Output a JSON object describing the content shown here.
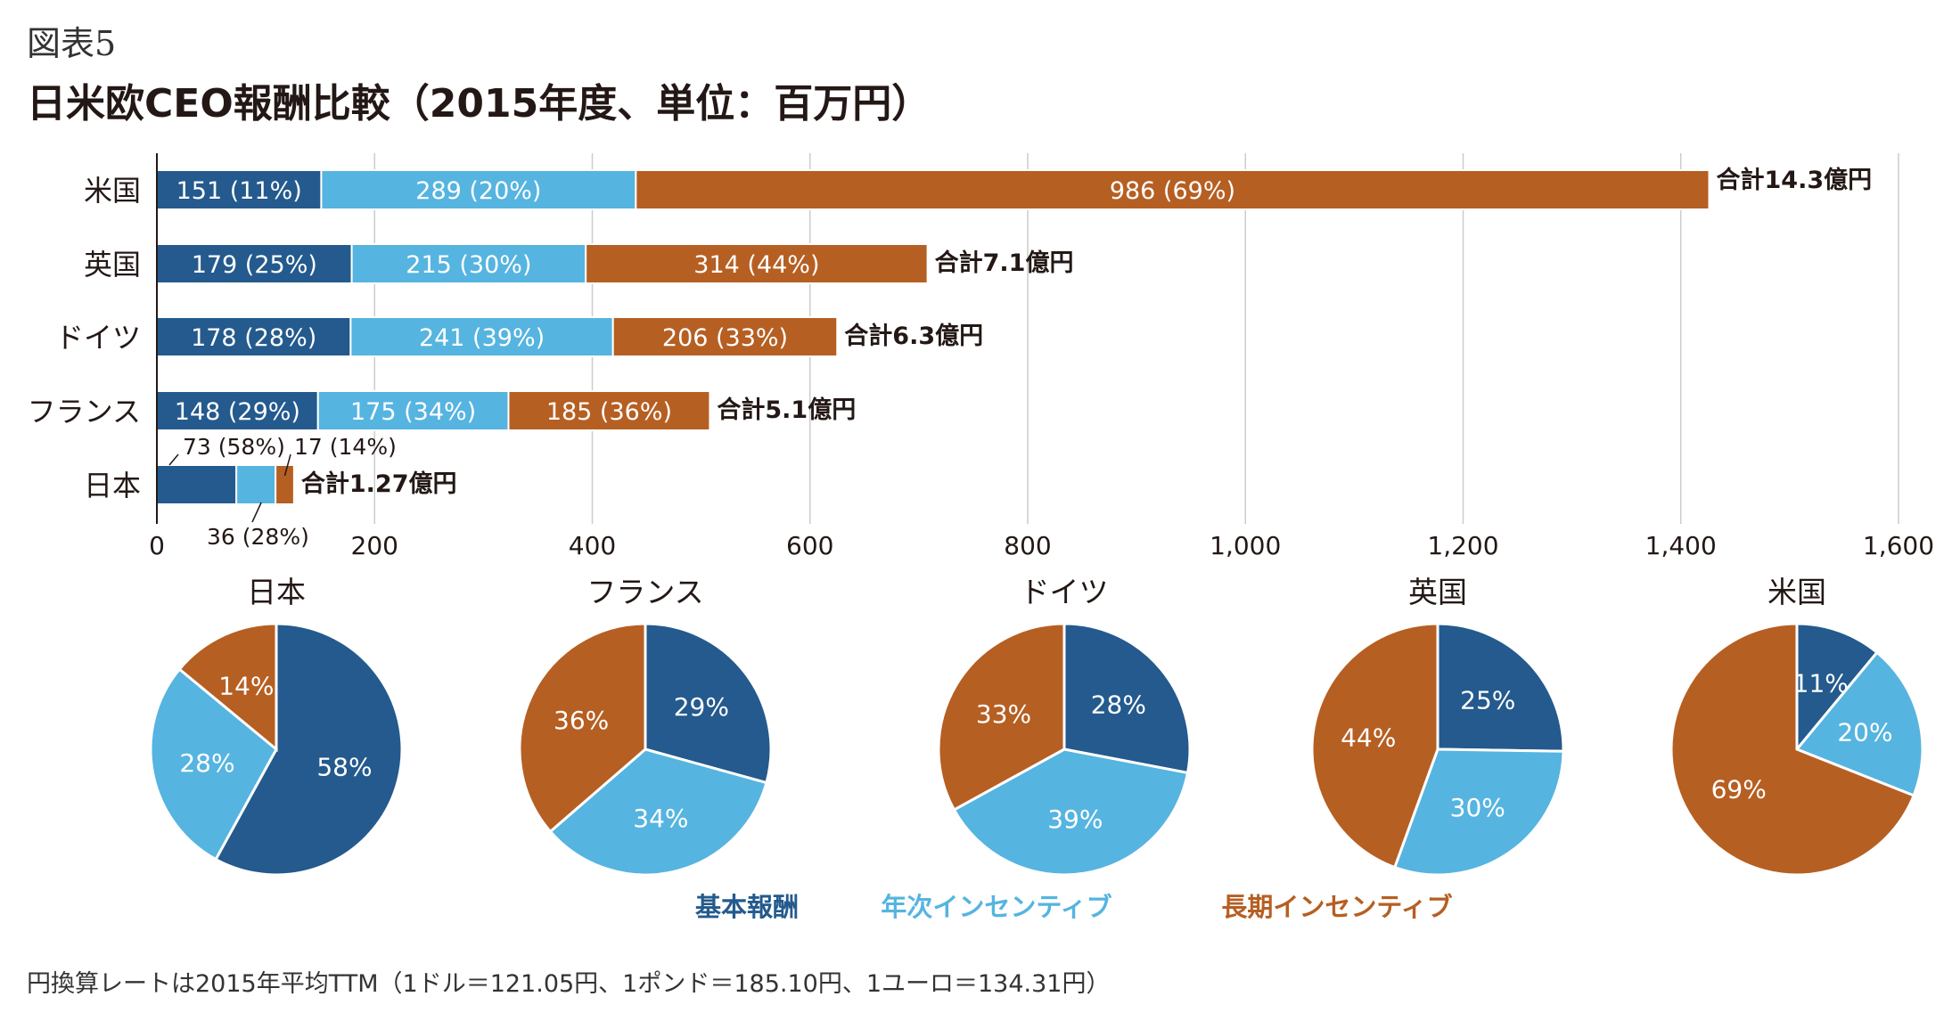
{
  "figure_label": "図表5",
  "title": "日米欧CEO報酬比較（2015年度、単位：百万円）",
  "footnote": "円換算レートは2015年平均TTM（1ドル＝121.05円、1ポンド＝185.10円、1ユーロ＝134.31円）",
  "colors": {
    "base_pay": "#245a8d",
    "annual_incentive": "#56b4e0",
    "long_term_incentive": "#b65f22",
    "gridline": "#cccccc",
    "text": "#231815"
  },
  "chart_data": [
    {
      "type": "bar",
      "orientation": "horizontal",
      "stacked": true,
      "categories": [
        "米国",
        "英国",
        "ドイツ",
        "フランス",
        "日本"
      ],
      "series": [
        {
          "name": "基本報酬",
          "values": [
            151,
            179,
            178,
            148,
            73
          ],
          "labels": [
            "151 (11%)",
            "179 (25%)",
            "178 (28%)",
            "148 (29%)",
            "73 (58%)"
          ]
        },
        {
          "name": "年次インセンティブ",
          "values": [
            289,
            215,
            241,
            175,
            36
          ],
          "labels": [
            "289 (20%)",
            "215 (30%)",
            "241 (39%)",
            "175 (34%)",
            "36 (28%)"
          ]
        },
        {
          "name": "長期インセンティブ",
          "values": [
            986,
            314,
            206,
            185,
            17
          ],
          "labels": [
            "986 (69%)",
            "314 (44%)",
            "206 (33%)",
            "185 (36%)",
            "17 (14%)"
          ]
        }
      ],
      "totals": [
        "合計14.3億円",
        "合計7.1億円",
        "合計6.3億円",
        "合計5.1億円",
        "合計1.27億円"
      ],
      "xlim": [
        0,
        1600
      ],
      "xticks": [
        0,
        200,
        400,
        600,
        800,
        1000,
        1200,
        1400,
        1600
      ],
      "xtick_labels": [
        "0",
        "200",
        "400",
        "600",
        "800",
        "1,000",
        "1,200",
        "1,400",
        "1,600"
      ],
      "grid": true
    },
    {
      "type": "pie",
      "pies": [
        {
          "title": "日本",
          "values": [
            58,
            28,
            14
          ],
          "labels": [
            "58%",
            "28%",
            "14%"
          ]
        },
        {
          "title": "フランス",
          "values": [
            29,
            34,
            36
          ],
          "labels": [
            "29%",
            "34%",
            "36%"
          ]
        },
        {
          "title": "ドイツ",
          "values": [
            28,
            39,
            33
          ],
          "labels": [
            "28%",
            "39%",
            "33%"
          ]
        },
        {
          "title": "英国",
          "values": [
            25,
            30,
            44
          ],
          "labels": [
            "25%",
            "30%",
            "44%"
          ]
        },
        {
          "title": "米国",
          "values": [
            11,
            20,
            69
          ],
          "labels": [
            "11%",
            "20%",
            "69%"
          ]
        }
      ],
      "legend": {
        "position": "bottom",
        "items": [
          "基本報酬",
          "年次インセンティブ",
          "長期インセンティブ"
        ]
      }
    }
  ]
}
